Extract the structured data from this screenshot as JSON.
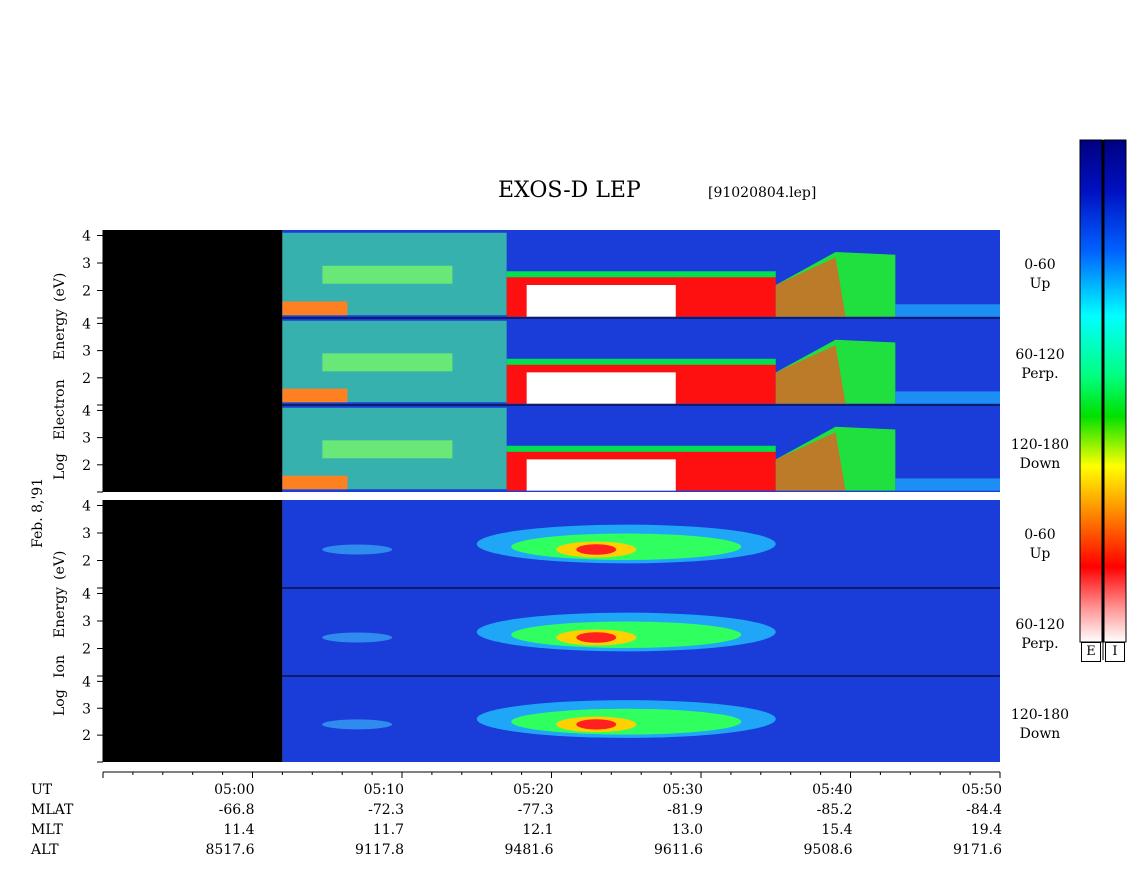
{
  "title": "EXOS-D LEP",
  "file": "[91020804.lep]",
  "date": "Feb. 8,'91",
  "electron_ylabel": [
    "Log",
    "Electron",
    "Energy",
    "(eV)"
  ],
  "ion_ylabel": [
    "Log",
    "Ion",
    "Energy",
    "(eV)"
  ],
  "panels": [
    {
      "species": "Electron",
      "pitch": "0-60",
      "dir": "Up"
    },
    {
      "species": "Electron",
      "pitch": "60-120",
      "dir": "Perp."
    },
    {
      "species": "Electron",
      "pitch": "120-180",
      "dir": "Down"
    },
    {
      "species": "Ion",
      "pitch": "0-60",
      "dir": "Up"
    },
    {
      "species": "Ion",
      "pitch": "60-120",
      "dir": "Perp."
    },
    {
      "species": "Ion",
      "pitch": "120-180",
      "dir": "Down"
    }
  ],
  "colorbars": [
    "E",
    "I"
  ],
  "orbit_labels": [
    "UT",
    "MLAT",
    "MLT",
    "ALT"
  ],
  "orbit": [
    {
      "UT": "05:00",
      "MLAT": "-66.8",
      "MLT": "11.4",
      "ALT": "8517.6"
    },
    {
      "UT": "05:10",
      "MLAT": "-72.3",
      "MLT": "11.7",
      "ALT": "9117.8"
    },
    {
      "UT": "05:20",
      "MLAT": "-77.3",
      "MLT": "12.1",
      "ALT": "9481.6"
    },
    {
      "UT": "05:30",
      "MLAT": "-81.9",
      "MLT": "13.0",
      "ALT": "9611.6"
    },
    {
      "UT": "05:40",
      "MLAT": "-85.2",
      "MLT": "15.4",
      "ALT": "9508.6"
    },
    {
      "UT": "05:50",
      "MLAT": "-84.4",
      "MLT": "19.4",
      "ALT": "9171.6"
    }
  ],
  "chart_data": {
    "type": "heatmap",
    "x": [
      "05:00",
      "05:10",
      "05:20",
      "05:30",
      "05:40",
      "05:50"
    ],
    "xlabel": "UT",
    "xlim": [
      "04:50",
      "05:50"
    ],
    "ylim": [
      1,
      4.2
    ],
    "yticks": [
      2,
      3,
      4
    ],
    "data_start": "05:02",
    "colors": {
      "low": "#0000a0",
      "mid": "#00ffff",
      "high": "#00ff00",
      "peak": "#ff0000",
      "max": "#ffffff"
    },
    "series": [
      {
        "name": "Electron 0-60 Up"
      },
      {
        "name": "Electron 60-120 Perp."
      },
      {
        "name": "Electron 120-180 Down"
      },
      {
        "name": "Ion 0-60 Up"
      },
      {
        "name": "Ion 60-120 Perp."
      },
      {
        "name": "Ion 120-180 Down"
      }
    ]
  }
}
